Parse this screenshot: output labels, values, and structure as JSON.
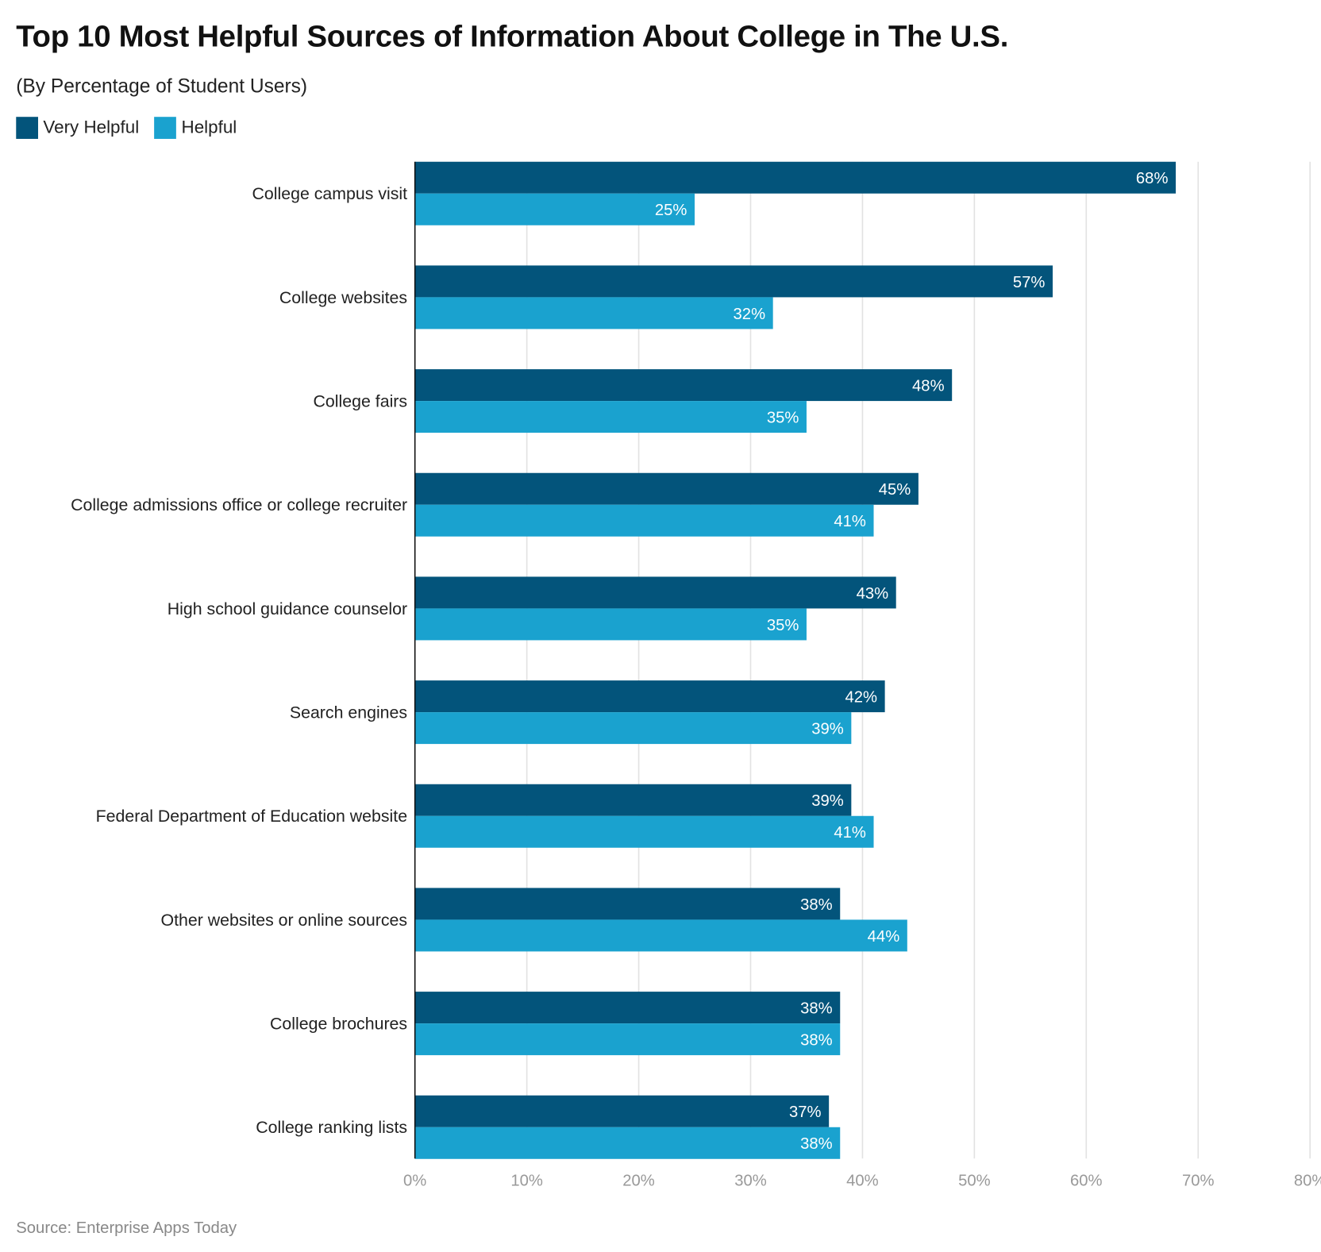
{
  "title": "Top 10 Most Helpful Sources of Information About College in The U.S.",
  "subtitle": "(By Percentage of Student Users)",
  "source": "Source: Enterprise Apps Today",
  "chart_data": {
    "type": "bar",
    "orientation": "horizontal",
    "title": "Top 10 Most Helpful Sources of Information About College in The U.S.",
    "subtitle": "(By Percentage of Student Users)",
    "categories": [
      "College campus visit",
      "College websites",
      "College fairs",
      "College admissions office or college recruiter",
      "High school guidance counselor",
      "Search engines",
      "Federal Department of Education website",
      "Other websites or online sources",
      "College brochures",
      "College ranking lists"
    ],
    "series": [
      {
        "name": "Very Helpful",
        "color": "#03547b",
        "values": [
          68,
          57,
          48,
          45,
          43,
          42,
          39,
          38,
          38,
          37
        ]
      },
      {
        "name": "Helpful",
        "color": "#1aa2cf",
        "values": [
          25,
          32,
          35,
          41,
          35,
          39,
          41,
          44,
          38,
          38
        ]
      }
    ],
    "xlim": [
      0,
      80
    ],
    "xticks": [
      0,
      10,
      20,
      30,
      40,
      50,
      60,
      70,
      80
    ],
    "tick_format": "%",
    "grid": true,
    "legend_position": "top-left",
    "data_labels": true
  }
}
